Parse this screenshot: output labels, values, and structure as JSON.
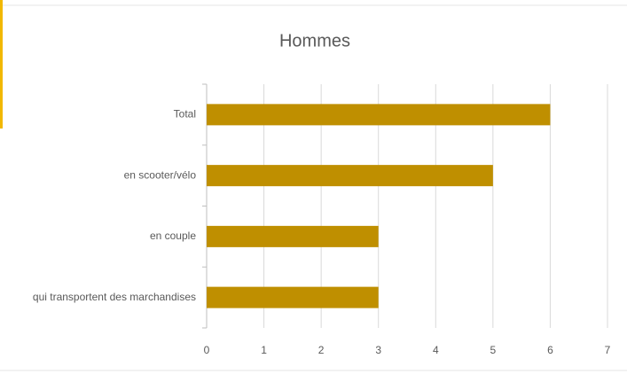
{
  "chart_data": {
    "type": "bar",
    "orientation": "horizontal",
    "title": "Hommes",
    "categories": [
      "Total",
      "en scooter/vélo",
      "en couple",
      "qui transportent des marchandises"
    ],
    "values": [
      6,
      5,
      3,
      3
    ],
    "color": "#bf8f00",
    "xlim": [
      0,
      7
    ],
    "xticks": [
      0,
      1,
      2,
      3,
      4,
      5,
      6,
      7
    ],
    "grid": true
  }
}
